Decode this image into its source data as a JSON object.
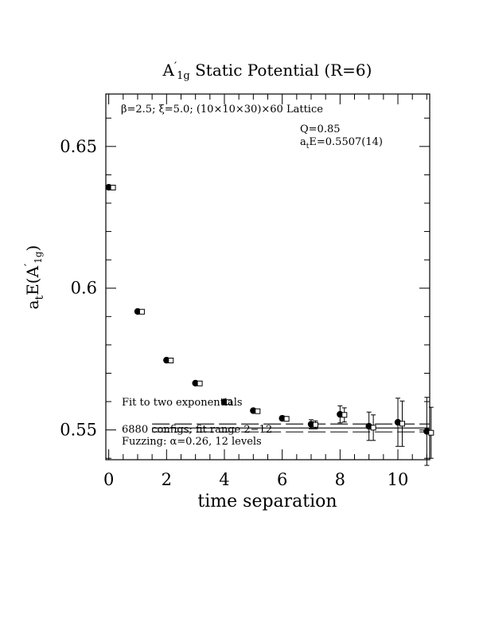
{
  "chart_data": {
    "type": "scatter",
    "title": {
      "main": "A",
      "prime": "′",
      "subscript": "1g",
      "rest": " Static Potential (R=6)"
    },
    "xlabel": "time separation",
    "ylabel": {
      "prefix": "a",
      "prefix_sub": "t",
      "middle": "E(A",
      "prime": "′",
      "subscript": "1g",
      "suffix": ")"
    },
    "xlim": [
      -0.1,
      11.1
    ],
    "ylim": [
      0.5395,
      0.6685
    ],
    "x_ticks": [
      0,
      2,
      4,
      6,
      8,
      10
    ],
    "x_tick_labels": [
      "0",
      "2",
      "4",
      "6",
      "8",
      "10"
    ],
    "y_ticks": [
      0.55,
      0.6,
      0.65
    ],
    "y_tick_labels": [
      "0.55",
      "0.6",
      "0.65"
    ],
    "grid": false,
    "annotations": {
      "top_left": "β=2.5; ξ=5.0; (10×10×30)×60 Lattice",
      "q_value": "Q=0.85",
      "energy": {
        "prefix": "a",
        "prefix_sub": "t",
        "rest": "E=0.5507(14)"
      },
      "fit_text": "Fit to two exponentials",
      "configs_text": "6880 configs; fit range 2−12",
      "fuzzing_text": "Fuzzing: α=0.26, 12 levels"
    },
    "series": [
      {
        "marker": "filled-circle",
        "x": [
          0,
          1,
          2,
          3,
          4,
          5,
          6,
          7,
          8,
          9,
          10,
          11
        ],
        "y": [
          0.6356,
          0.5918,
          0.5746,
          0.5665,
          0.5599,
          0.5568,
          0.5541,
          0.552,
          0.5555,
          0.5513,
          0.5527,
          0.5495
        ],
        "err": [
          0.0003,
          0.0003,
          0.0003,
          0.0004,
          0.0005,
          0.0006,
          0.0008,
          0.0016,
          0.003,
          0.005,
          0.0085,
          0.012
        ]
      },
      {
        "marker": "open-square",
        "x": [
          0.15,
          1.15,
          2.15,
          3.15,
          4.15,
          5.15,
          6.15,
          7.15,
          8.15,
          9.15,
          10.15,
          11.15
        ],
        "y": [
          0.6355,
          0.5917,
          0.5745,
          0.5664,
          0.5598,
          0.5566,
          0.5539,
          0.5518,
          0.5553,
          0.5508,
          0.5522,
          0.549
        ],
        "err": [
          0.0003,
          0.0003,
          0.0003,
          0.0004,
          0.0005,
          0.0006,
          0.0008,
          0.0014,
          0.0025,
          0.0045,
          0.008,
          0.009
        ]
      }
    ],
    "fit": {
      "x_range": [
        1.5,
        11.1
      ],
      "center": 0.5507,
      "error": 0.0014
    }
  }
}
